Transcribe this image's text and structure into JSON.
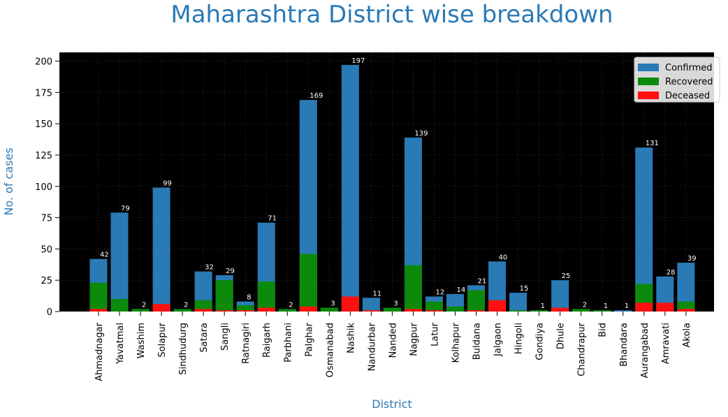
{
  "chart_data": {
    "type": "bar",
    "title": "Maharashtra District wise breakdown",
    "xlabel": "District",
    "ylabel": "No. of cases",
    "ylim": [
      0,
      207
    ],
    "yticks": [
      0,
      25,
      50,
      75,
      100,
      125,
      150,
      175,
      200
    ],
    "grid": true,
    "stacked_overlay": true,
    "legend_position": "top-right",
    "categories": [
      "Ahmadnagar",
      "Yavatmal",
      "Washim",
      "Solapur",
      "Sindhudurg",
      "Satara",
      "Sangli",
      "Ratnagiri",
      "Raigarh",
      "Parbhani",
      "Palghar",
      "Osmanabad",
      "Nashik",
      "Nandurbar",
      "Nanded",
      "Nagpur",
      "Latur",
      "Kolhapur",
      "Buldana",
      "Jalgaon",
      "Hingoli",
      "Gondiya",
      "Dhule",
      "Chandrapur",
      "Bid",
      "Bhandara",
      "Aurangabad",
      "Amravati",
      "Akola"
    ],
    "series": [
      {
        "name": "Confirmed",
        "color": "#2a7ab5",
        "values": [
          42,
          79,
          2,
          99,
          2,
          32,
          29,
          8,
          71,
          2,
          169,
          3,
          197,
          11,
          3,
          139,
          12,
          14,
          21,
          40,
          15,
          1,
          25,
          2,
          1,
          1,
          131,
          28,
          39
        ]
      },
      {
        "name": "Recovered",
        "color": "#0b8a0b",
        "values": [
          23,
          10,
          2,
          6,
          2,
          9,
          25,
          5,
          24,
          2,
          46,
          3,
          12,
          1,
          3,
          37,
          8,
          4,
          17,
          9,
          1,
          1,
          3,
          2,
          1,
          0,
          22,
          7,
          8
        ]
      },
      {
        "name": "Deceased",
        "color": "#ff1010",
        "values": [
          2,
          0,
          0,
          6,
          0,
          2,
          1,
          1,
          3,
          0,
          4,
          0,
          12,
          1,
          0,
          2,
          1,
          0,
          1,
          9,
          0,
          0,
          3,
          0,
          0,
          0,
          7,
          7,
          2
        ]
      }
    ],
    "data_labels": [
      "42",
      "79",
      "2",
      "99",
      "2",
      "32",
      "29",
      "8",
      "71",
      "2",
      "169",
      "3",
      "197",
      "11",
      "3",
      "139",
      "12",
      "14",
      "21",
      "40",
      "15",
      "1",
      "25",
      "2",
      "1",
      "1",
      "131",
      "28",
      "39"
    ]
  }
}
